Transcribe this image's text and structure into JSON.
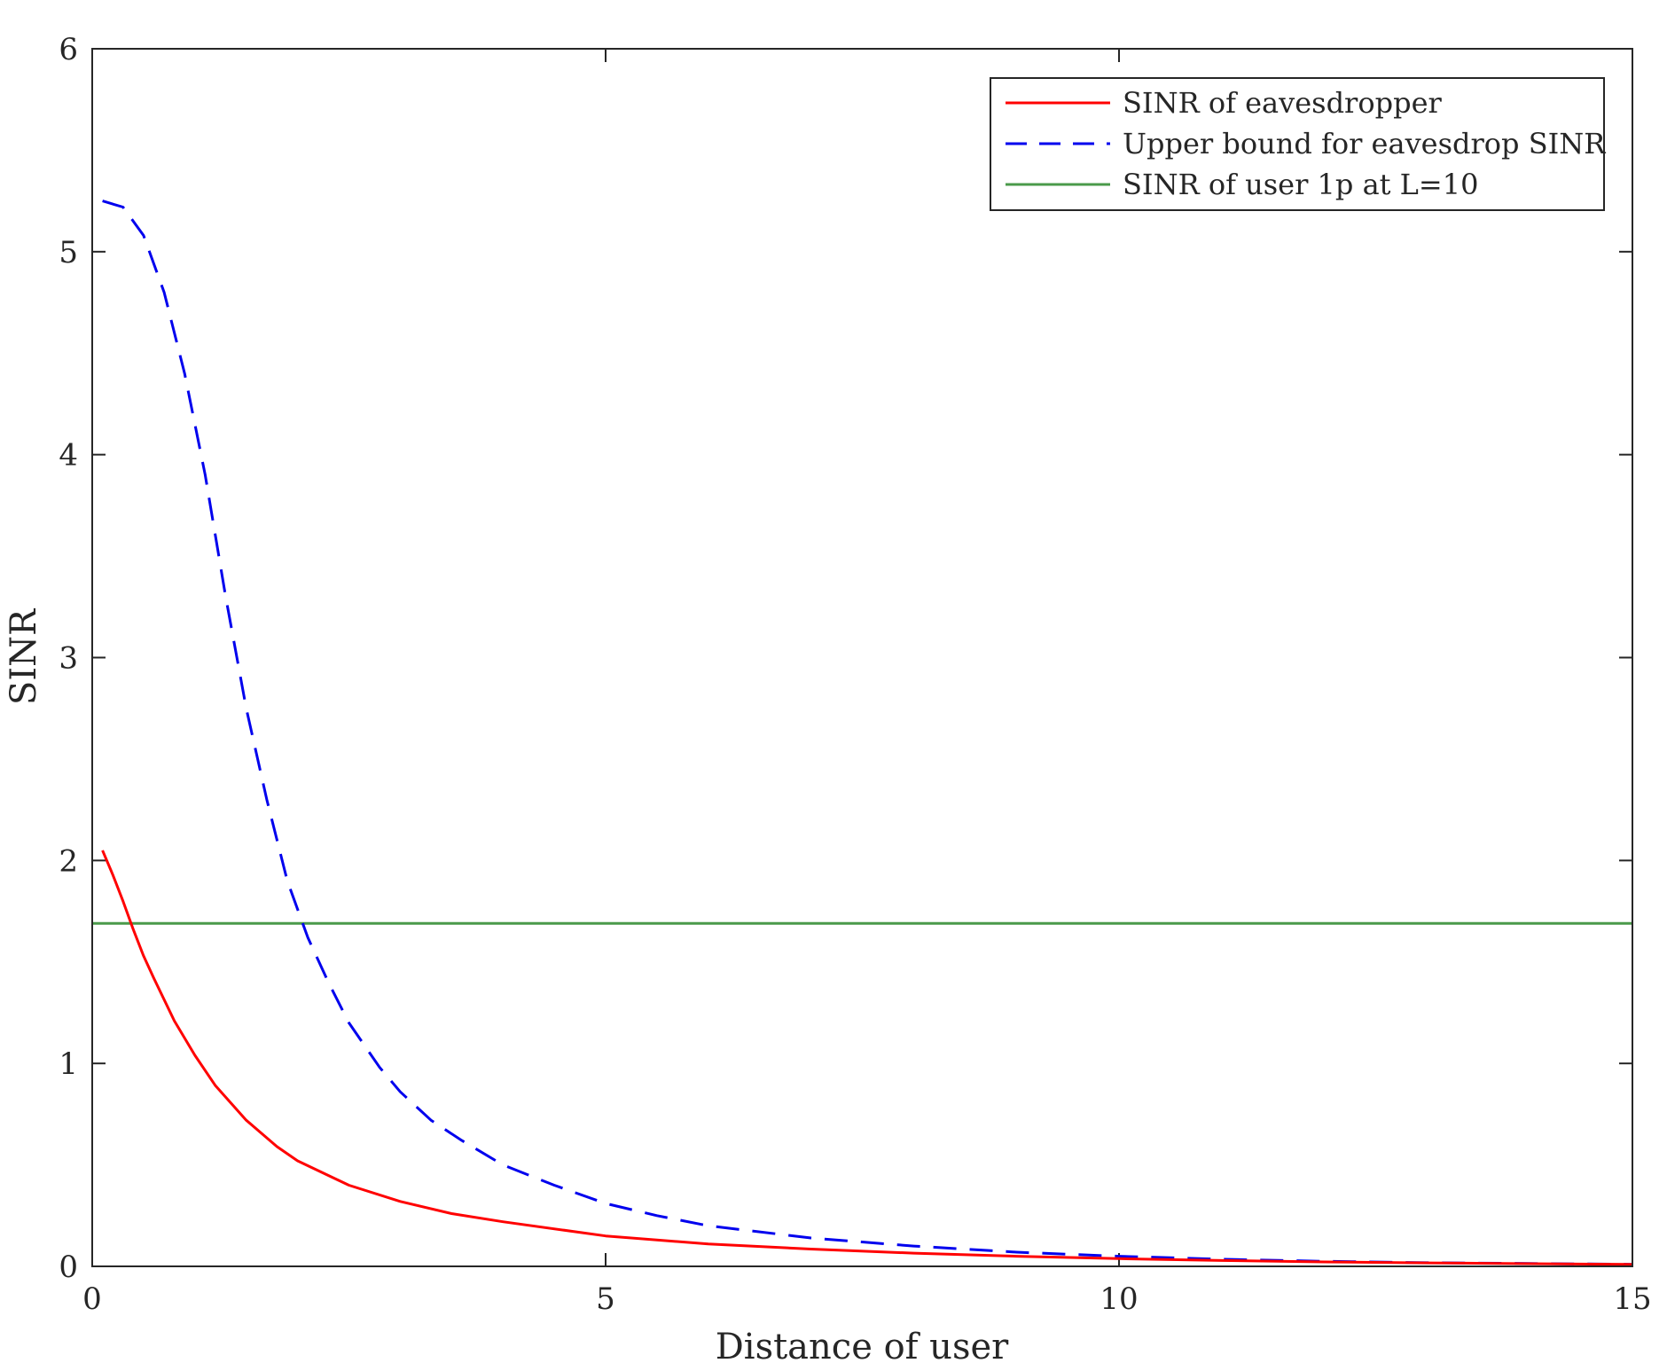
{
  "chart_data": {
    "type": "line",
    "title": "",
    "xlabel": "Distance of user",
    "ylabel": "SINR",
    "xlim": [
      0,
      15
    ],
    "ylim": [
      0,
      6
    ],
    "xticks": [
      "0",
      "5",
      "10",
      "15"
    ],
    "yticks": [
      "0",
      "1",
      "2",
      "3",
      "4",
      "5",
      "6"
    ],
    "grid": false,
    "legend_position": "top-right",
    "series": [
      {
        "name": "SINR of eavesdropper",
        "color": "#ff0000",
        "style": "solid",
        "x": [
          0.1,
          0.2,
          0.3,
          0.4,
          0.5,
          0.6,
          0.8,
          1.0,
          1.2,
          1.5,
          1.8,
          2.0,
          2.5,
          3.0,
          3.5,
          4.0,
          5.0,
          6.0,
          7.0,
          8.0,
          9.0,
          10.0,
          11.0,
          12.0,
          13.0,
          14.0,
          15.0
        ],
        "y": [
          2.05,
          1.93,
          1.8,
          1.66,
          1.53,
          1.42,
          1.21,
          1.04,
          0.89,
          0.72,
          0.59,
          0.52,
          0.4,
          0.32,
          0.26,
          0.22,
          0.15,
          0.11,
          0.085,
          0.065,
          0.05,
          0.038,
          0.029,
          0.022,
          0.017,
          0.013,
          0.01
        ]
      },
      {
        "name": "Upper bound for eavesdrop SINR",
        "color": "#0000ee",
        "style": "dashed",
        "x": [
          0.1,
          0.3,
          0.5,
          0.7,
          0.9,
          1.1,
          1.3,
          1.5,
          1.7,
          1.9,
          2.1,
          2.3,
          2.5,
          2.8,
          3.0,
          3.3,
          3.6,
          4.0,
          4.5,
          5.0,
          5.5,
          6.0,
          7.0,
          8.0,
          9.0,
          10.0,
          11.0,
          12.0,
          13.0,
          14.0,
          15.0
        ],
        "y": [
          5.25,
          5.22,
          5.08,
          4.8,
          4.4,
          3.9,
          3.3,
          2.75,
          2.3,
          1.9,
          1.62,
          1.4,
          1.2,
          0.98,
          0.86,
          0.72,
          0.62,
          0.5,
          0.4,
          0.31,
          0.25,
          0.2,
          0.14,
          0.1,
          0.07,
          0.05,
          0.035,
          0.025,
          0.018,
          0.014,
          0.01
        ]
      },
      {
        "name": "SINR of user 1p at L=10",
        "color": "#4a9a4a",
        "style": "solid",
        "x": [
          0,
          15
        ],
        "y": [
          1.69,
          1.69
        ]
      }
    ]
  }
}
